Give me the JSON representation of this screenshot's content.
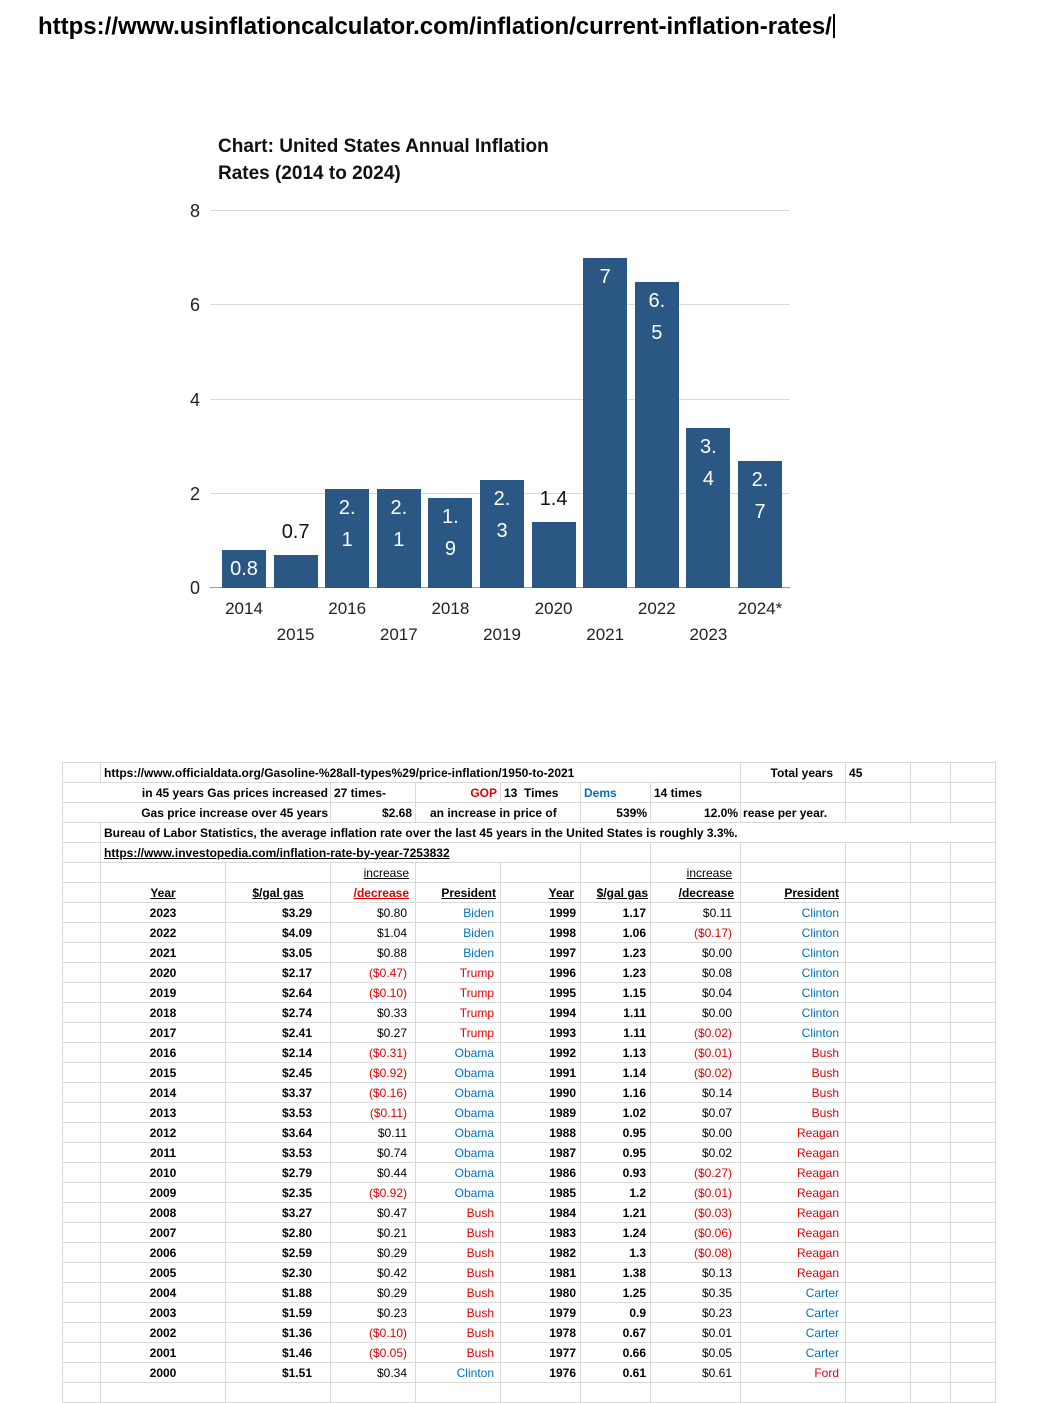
{
  "page": {
    "address": "https://www.usinflationcalculator.com/inflation/current-inflation-rates/"
  },
  "chart_data": {
    "type": "bar",
    "title": "Chart: United States Annual Inflation\nRates (2014 to 2024)",
    "categories": [
      "2014",
      "2015",
      "2016",
      "2017",
      "2018",
      "2019",
      "2020",
      "2021",
      "2022",
      "2023",
      "2024*"
    ],
    "values": [
      0.8,
      0.7,
      2.1,
      2.1,
      1.9,
      2.3,
      1.4,
      7,
      6.5,
      3.4,
      2.7
    ],
    "bar_labels": [
      "0.8",
      "0.7",
      "2.\n1",
      "2.\n1",
      "1.\n9",
      "2.\n3",
      "1.4",
      "7",
      "6.\n5",
      "3.\n4",
      "2.\n7"
    ],
    "label_positions": [
      "inside",
      "above",
      "inside",
      "inside",
      "inside",
      "inside",
      "above",
      "inside",
      "inside",
      "inside",
      "inside"
    ],
    "xlabel": "",
    "ylabel": "",
    "ylim": [
      0,
      8
    ],
    "yticks": [
      0,
      2,
      4,
      6,
      8
    ],
    "grid": true,
    "legend": "none",
    "bar_color": "#2a5783"
  },
  "sheet": {
    "row1": {
      "url": "https://www.officialdata.org/Gasoline-%28all-types%29/price-inflation/1950-to-2021",
      "total_years_label": "Total years",
      "total_years_value": "45"
    },
    "row2": {
      "label": "in 45 years Gas prices increased",
      "times": "27 times-",
      "gop": "GOP",
      "gop_times": "13  Times",
      "dems": "Dems",
      "dems_times": "14 times"
    },
    "row3": {
      "label": "Gas price increase over 45 years",
      "amount": "$2.68",
      "note": "an increase in price of",
      "pct": "539%",
      "rate": "12.0%",
      "rate_tail": "rease per year."
    },
    "row4": {
      "note": "Bureau of Labor Statistics, the average inflation rate over the last 45 years in the United States is roughly 3.3%."
    },
    "row5": {
      "url": "https://www.investopedia.com/inflation-rate-by-year-7253832"
    },
    "row6": {
      "increase": "increase"
    },
    "headers": {
      "year": "Year",
      "gas": "$/gal gas",
      "decrease": "/decrease",
      "president": "President"
    },
    "party": {
      "Biden": "dem",
      "Trump": "gop",
      "Obama": "dem",
      "Bush": "gop",
      "Clinton": "dem",
      "Reagan": "gop",
      "Carter": "dem",
      "Ford": "gop"
    },
    "rows": [
      [
        "2023",
        "$3.29",
        "$0.80",
        "Biden",
        "1999",
        "1.17",
        "$0.11",
        "Clinton"
      ],
      [
        "2022",
        "$4.09",
        "$1.04",
        "Biden",
        "1998",
        "1.06",
        "($0.17)",
        "Clinton"
      ],
      [
        "2021",
        "$3.05",
        "$0.88",
        "Biden",
        "1997",
        "1.23",
        "$0.00",
        "Clinton"
      ],
      [
        "2020",
        "$2.17",
        "($0.47)",
        "Trump",
        "1996",
        "1.23",
        "$0.08",
        "Clinton"
      ],
      [
        "2019",
        "$2.64",
        "($0.10)",
        "Trump",
        "1995",
        "1.15",
        "$0.04",
        "Clinton"
      ],
      [
        "2018",
        "$2.74",
        "$0.33",
        "Trump",
        "1994",
        "1.11",
        "$0.00",
        "Clinton"
      ],
      [
        "2017",
        "$2.41",
        "$0.27",
        "Trump",
        "1993",
        "1.11",
        "($0.02)",
        "Clinton"
      ],
      [
        "2016",
        "$2.14",
        "($0.31)",
        "Obama",
        "1992",
        "1.13",
        "($0.01)",
        "Bush"
      ],
      [
        "2015",
        "$2.45",
        "($0.92)",
        "Obama",
        "1991",
        "1.14",
        "($0.02)",
        "Bush"
      ],
      [
        "2014",
        "$3.37",
        "($0.16)",
        "Obama",
        "1990",
        "1.16",
        "$0.14",
        "Bush"
      ],
      [
        "2013",
        "$3.53",
        "($0.11)",
        "Obama",
        "1989",
        "1.02",
        "$0.07",
        "Bush"
      ],
      [
        "2012",
        "$3.64",
        "$0.11",
        "Obama",
        "1988",
        "0.95",
        "$0.00",
        "Reagan"
      ],
      [
        "2011",
        "$3.53",
        "$0.74",
        "Obama",
        "1987",
        "0.95",
        "$0.02",
        "Reagan"
      ],
      [
        "2010",
        "$2.79",
        "$0.44",
        "Obama",
        "1986",
        "0.93",
        "($0.27)",
        "Reagan"
      ],
      [
        "2009",
        "$2.35",
        "($0.92)",
        "Obama",
        "1985",
        "1.2",
        "($0.01)",
        "Reagan"
      ],
      [
        "2008",
        "$3.27",
        "$0.47",
        "Bush",
        "1984",
        "1.21",
        "($0.03)",
        "Reagan"
      ],
      [
        "2007",
        "$2.80",
        "$0.21",
        "Bush",
        "1983",
        "1.24",
        "($0.06)",
        "Reagan"
      ],
      [
        "2006",
        "$2.59",
        "$0.29",
        "Bush",
        "1982",
        "1.3",
        "($0.08)",
        "Reagan"
      ],
      [
        "2005",
        "$2.30",
        "$0.42",
        "Bush",
        "1981",
        "1.38",
        "$0.13",
        "Reagan"
      ],
      [
        "2004",
        "$1.88",
        "$0.29",
        "Bush",
        "1980",
        "1.25",
        "$0.35",
        "Carter"
      ],
      [
        "2003",
        "$1.59",
        "$0.23",
        "Bush",
        "1979",
        "0.9",
        "$0.23",
        "Carter"
      ],
      [
        "2002",
        "$1.36",
        "($0.10)",
        "Bush",
        "1978",
        "0.67",
        "$0.01",
        "Carter"
      ],
      [
        "2001",
        "$1.46",
        "($0.05)",
        "Bush",
        "1977",
        "0.66",
        "$0.05",
        "Carter"
      ],
      [
        "2000",
        "$1.51",
        "$0.34",
        "Clinton",
        "1976",
        "0.61",
        "$0.61",
        "Ford"
      ]
    ]
  },
  "colors": {
    "dem_blue": "#0070c0",
    "gop_red": "#e00000",
    "negative_red": "#e00000",
    "bar_blue": "#2a5783"
  }
}
